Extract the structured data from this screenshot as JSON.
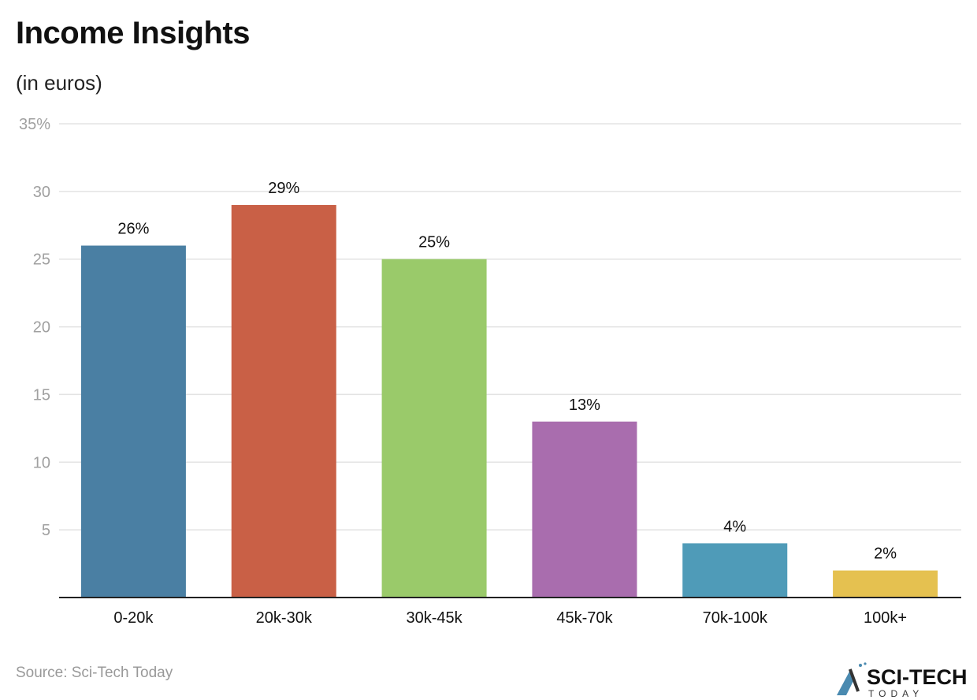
{
  "chart_data": {
    "type": "bar",
    "title": "Income Insights",
    "subtitle": "(in euros)",
    "categories": [
      "0-20k",
      "20k-30k",
      "30k-45k",
      "45k-70k",
      "70k-100k",
      "100k+"
    ],
    "values": [
      26,
      29,
      25,
      13,
      4,
      2
    ],
    "data_labels": [
      "26%",
      "29%",
      "25%",
      "13%",
      "4%",
      "2%"
    ],
    "colors": [
      "#4a7fa3",
      "#c96046",
      "#9aca6a",
      "#a96dae",
      "#4f9bb8",
      "#e5c150"
    ],
    "ylim": [
      0,
      35
    ],
    "yticks": [
      5,
      10,
      15,
      20,
      25,
      30,
      35
    ],
    "ytick_labels": [
      "5",
      "10",
      "15",
      "20",
      "25",
      "30",
      "35%"
    ],
    "grid": true,
    "source": "Source: Sci-Tech Today",
    "logo_text": "SCI-TECH TODAY"
  }
}
